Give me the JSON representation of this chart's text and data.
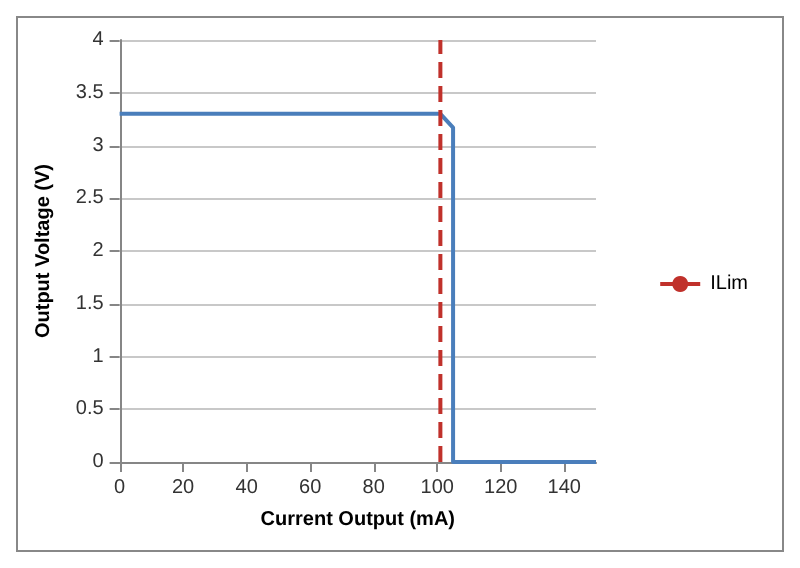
{
  "chart_data": {
    "type": "line",
    "xlabel": "Current Output (mA)",
    "ylabel": "Output Voltage (V)",
    "series": [
      {
        "color": "#4a7ebb",
        "x": [
          0,
          101,
          105,
          105,
          150
        ],
        "values": [
          3.3,
          3.3,
          3.17,
          0,
          0
        ]
      },
      {
        "name": "ILim",
        "color": "#c0312b",
        "line_style": "dashed",
        "x": [
          101,
          101
        ],
        "values": [
          0,
          4
        ]
      }
    ],
    "xlim": [
      0,
      150
    ],
    "xticks": [
      0,
      20,
      40,
      60,
      80,
      100,
      120,
      140
    ],
    "ylim": [
      0,
      4
    ],
    "yticks": [
      0,
      0.5,
      1,
      1.5,
      2,
      2.5,
      3,
      3.5,
      4
    ],
    "grid": "y",
    "legend": "right",
    "marker": "none",
    "line_style": "solid"
  }
}
